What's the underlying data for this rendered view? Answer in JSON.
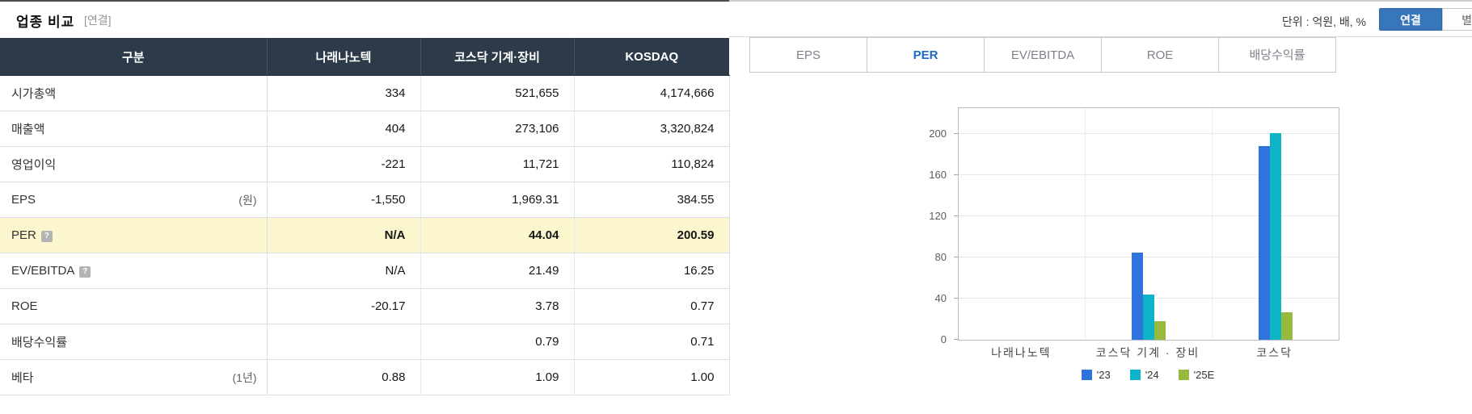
{
  "page": {
    "title": "업종 비교",
    "subtitle": "[연결]",
    "unit_label": "단위 : 억원, 배, %",
    "view_buttons": {
      "consolidated": "연결",
      "separate": "별도"
    }
  },
  "table": {
    "help_icon": "?",
    "columns": [
      "구분",
      "나래나노텍",
      "코스닥 기계·장비",
      "KOSDAQ"
    ],
    "rows": [
      {
        "label": "시가총액",
        "sublabel": "",
        "values": [
          "334",
          "521,655",
          "4,174,666"
        ]
      },
      {
        "label": "매출액",
        "sublabel": "",
        "values": [
          "404",
          "273,106",
          "3,320,824"
        ]
      },
      {
        "label": "영업이익",
        "sublabel": "",
        "values": [
          "-221",
          "11,721",
          "110,824"
        ]
      },
      {
        "label": "EPS",
        "sublabel": "(원)",
        "values": [
          "-1,550",
          "1,969.31",
          "384.55"
        ]
      },
      {
        "label": "PER",
        "sublabel": "",
        "values": [
          "N/A",
          "44.04",
          "200.59"
        ]
      },
      {
        "label": "EV/EBITDA",
        "sublabel": "",
        "values": [
          "N/A",
          "21.49",
          "16.25"
        ]
      },
      {
        "label": "ROE",
        "sublabel": "",
        "values": [
          "-20.17",
          "3.78",
          "0.77"
        ]
      },
      {
        "label": "배당수익률",
        "sublabel": "",
        "values": [
          "",
          "0.79",
          "0.71"
        ]
      },
      {
        "label": "베타",
        "sublabel": "(1년)",
        "values": [
          "0.88",
          "1.09",
          "1.00"
        ]
      }
    ]
  },
  "tabs": [
    {
      "label": "EPS",
      "active": false
    },
    {
      "label": "PER",
      "active": true
    },
    {
      "label": "EV/EBITDA",
      "active": false
    },
    {
      "label": "ROE",
      "active": false
    },
    {
      "label": "배당수익률",
      "active": false
    }
  ],
  "chart_data": {
    "type": "bar",
    "title": "PER",
    "categories": [
      "나래나노텍",
      "코스닥 기계 · 장비",
      "코스닥"
    ],
    "series": [
      {
        "name": "'23",
        "color": "#2e74dc",
        "values": [
          null,
          85,
          188
        ]
      },
      {
        "name": "'24",
        "color": "#0db3c7",
        "values": [
          null,
          44.04,
          200.59
        ]
      },
      {
        "name": "'25E",
        "color": "#95ba3e",
        "values": [
          null,
          18,
          27
        ]
      }
    ],
    "ylim": [
      0,
      225
    ],
    "yticks": [
      0,
      40,
      80,
      120,
      160,
      200
    ],
    "grid": true,
    "legend_position": "bottom"
  },
  "colors": {
    "table_header_bg": "#2c3a4a",
    "label_cell_bg": "#eef0f8",
    "highlight_row_bg": "#fbf6cd",
    "negative_value": "#d61d1d",
    "active_tab_text": "#1c6ac5",
    "primary_button_bg": "#3876ba"
  }
}
